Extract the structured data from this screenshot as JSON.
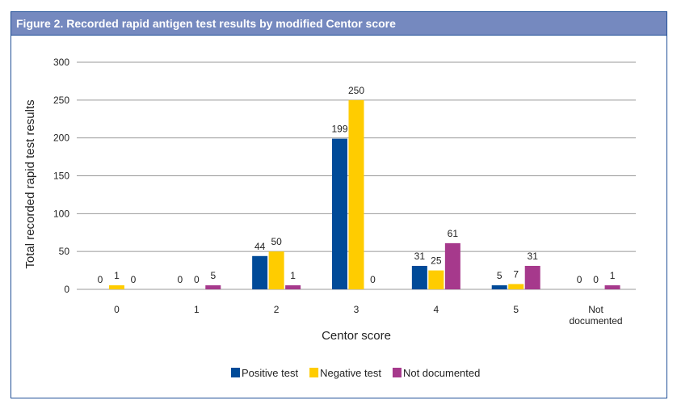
{
  "figure": {
    "label": "Figure 2.",
    "title": "Recorded rapid antigen test results by modified Centor score"
  },
  "chart_data": {
    "type": "bar",
    "title": "Figure 2. Recorded rapid antigen test results by modified Centor score",
    "xlabel": "Centor score",
    "ylabel": "Total recorded rapid test results",
    "categories": [
      "0",
      "1",
      "2",
      "3",
      "4",
      "5",
      "Not documented"
    ],
    "ylim": [
      0,
      300
    ],
    "yticks": [
      0,
      50,
      100,
      150,
      200,
      250,
      300
    ],
    "grid": true,
    "legend": "bottom",
    "series": [
      {
        "name": "Positive test",
        "color": "#004a98",
        "values": [
          0,
          0,
          44,
          199,
          31,
          5,
          0
        ]
      },
      {
        "name": "Negative test",
        "color": "#ffcc00",
        "values": [
          1,
          0,
          50,
          250,
          25,
          7,
          0
        ]
      },
      {
        "name": "Not documented",
        "color": "#a6398c",
        "values": [
          0,
          5,
          1,
          0,
          61,
          31,
          1
        ]
      }
    ]
  }
}
